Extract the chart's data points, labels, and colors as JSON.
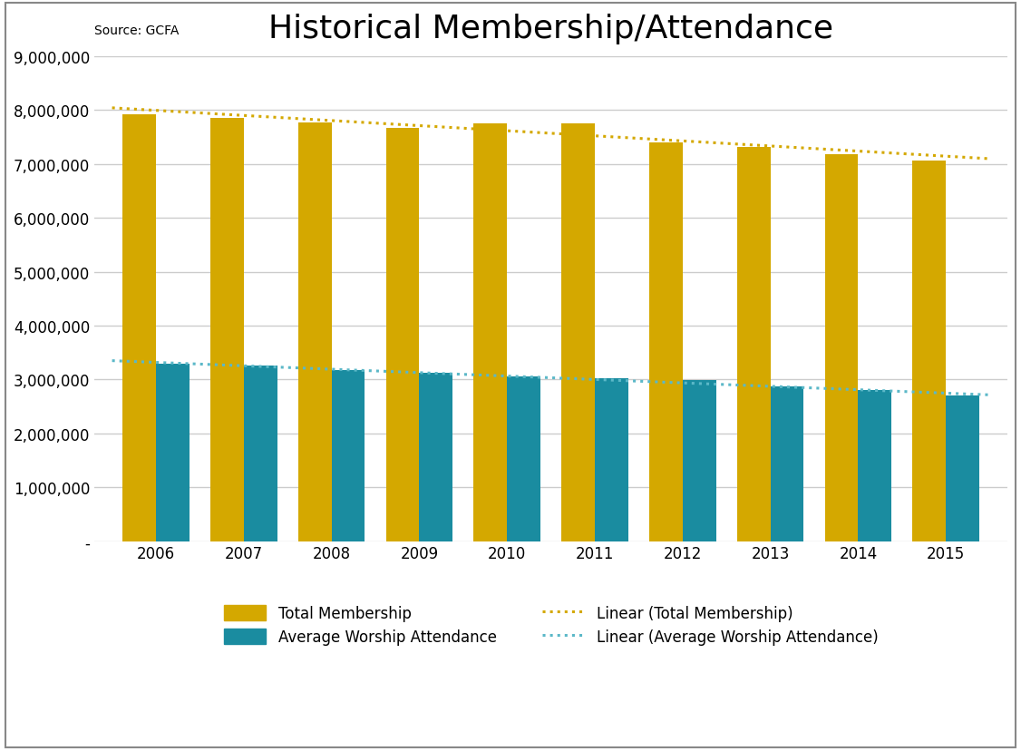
{
  "title": "Historical Membership/Attendance",
  "source": "Source: GCFA",
  "years": [
    2006,
    2007,
    2008,
    2009,
    2010,
    2011,
    2012,
    2013,
    2014,
    2015
  ],
  "total_membership": [
    7920000,
    7855000,
    7774000,
    7676000,
    7758000,
    7749000,
    7391000,
    7306000,
    7183000,
    7067000
  ],
  "avg_worship_attendance": [
    3293000,
    3261000,
    3178000,
    3131000,
    3055000,
    3025000,
    2990000,
    2869000,
    2802000,
    2709000
  ],
  "bar_color_membership": "#D4A800",
  "bar_color_attendance": "#1A8CA0",
  "line_color_membership": "#D4A800",
  "line_color_attendance": "#5BB8C8",
  "background_color": "#FFFFFF",
  "plot_bg_color": "#FFFFFF",
  "grid_color": "#CCCCCC",
  "ylim": [
    0,
    9000000
  ],
  "yticks": [
    0,
    1000000,
    2000000,
    3000000,
    4000000,
    5000000,
    6000000,
    7000000,
    8000000,
    9000000
  ],
  "title_fontsize": 26,
  "source_fontsize": 10,
  "legend_fontsize": 12,
  "tick_fontsize": 12,
  "bar_width": 0.38
}
